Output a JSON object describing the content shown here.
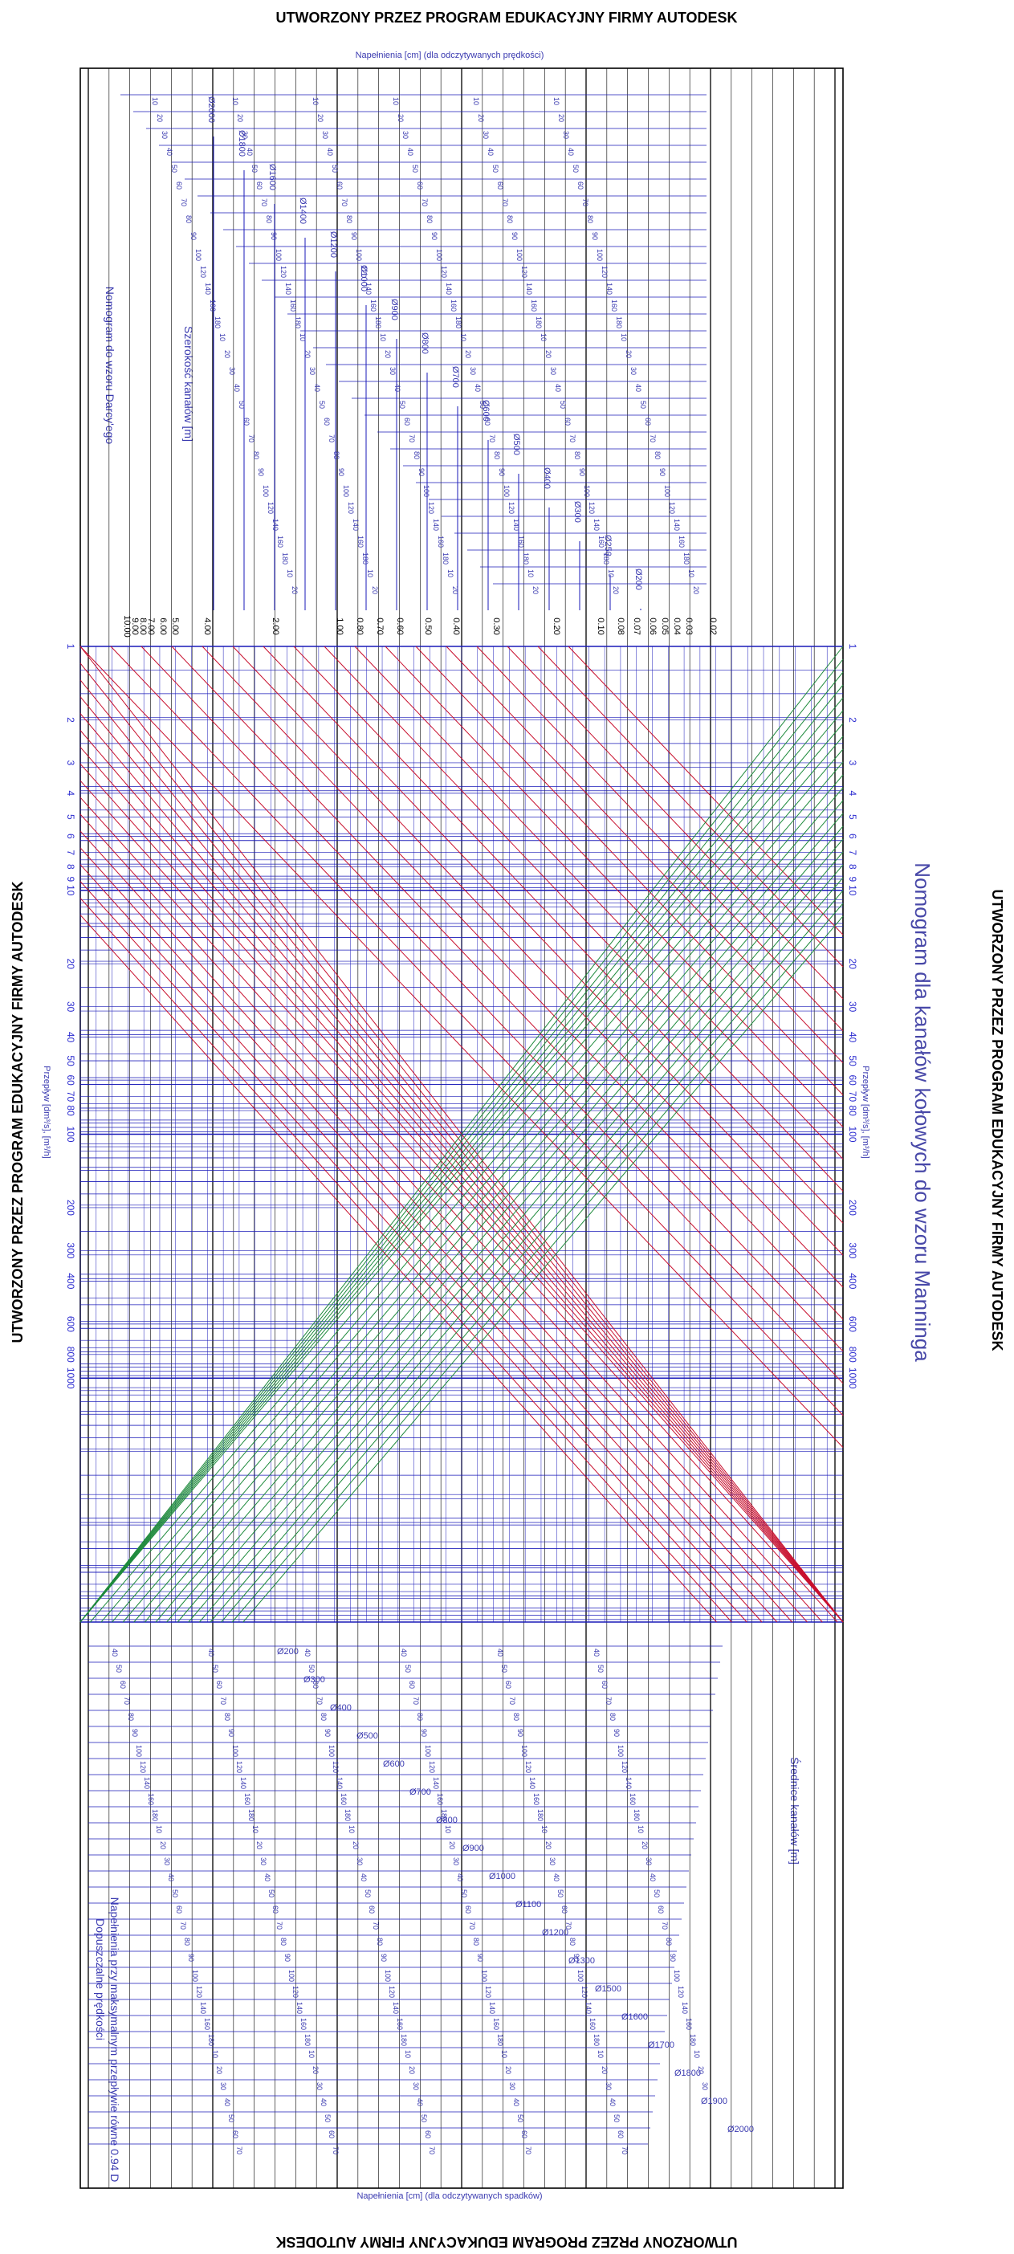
{
  "watermark": "UTWORZONY PRZEZ PROGRAM EDUKACYJNY FIRMY AUTODESK",
  "title": "Nomogram dla kanałów kołowych do wzoru Manninga",
  "top_caption": "Napełnienia [cm] (dla odczytywanych prędkości)",
  "bottom_caption": "Napełnienia [cm] (dla odczytywanych spadków)",
  "upper_left_label": "Nomogram do wzoru Darcy'ego",
  "upper_mid_label": "Szerokość kanałów [m]",
  "lower_mid_label": "Średnice kanałów [m]",
  "lower_left_label_1": "Dopuszczalne prędkości",
  "lower_left_label_2": "Napełnienia przy maksymalnym przepływie równe 0.94 D",
  "axis_label_left": "Przepływ [dm³/s], [m³/h]",
  "axis_label_right": "Przepływ [dm³/s], [m³/h]",
  "colors": {
    "frame": "#000000",
    "grid_blue": "#1a1ab8",
    "red": "#c8102e",
    "green": "#1e8a3c",
    "text_blue": "#3a3ab0"
  },
  "chart_data": {
    "type": "nomogram",
    "flow_ticks": [
      "1",
      "2",
      "3",
      "4",
      "5",
      "6",
      "7",
      "8",
      "9",
      "10",
      "20",
      "30",
      "40",
      "50",
      "60",
      "70",
      "80",
      "100",
      "200",
      "300",
      "400",
      "600",
      "800",
      "1000"
    ],
    "flow_values": [
      1,
      2,
      3,
      4,
      5,
      6,
      7,
      8,
      9,
      10,
      20,
      30,
      40,
      50,
      60,
      70,
      80,
      100,
      200,
      300,
      400,
      600,
      800,
      1000
    ],
    "scale_ticks": [
      "10.00",
      "9.00",
      "8.00",
      "7.00",
      "6.00",
      "5.00",
      "4.00",
      "2.00",
      "1.00",
      "0.80",
      "0.70",
      "0.60",
      "0.50",
      "0.40",
      "0.30",
      "0.20",
      "0.10",
      "0.08",
      "0.07",
      "0.06",
      "0.05",
      "0.04",
      "0.03",
      "0.02"
    ],
    "diameters_upper": [
      "Ø2000",
      "Ø1800",
      "Ø1600",
      "Ø1400",
      "Ø1200",
      "Ø1000",
      "Ø900",
      "Ø800",
      "Ø700",
      "Ø600",
      "Ø500",
      "Ø400",
      "Ø300",
      "Ø250",
      "Ø200"
    ],
    "diameters_lower": [
      "Ø200",
      "Ø300",
      "Ø400",
      "Ø500",
      "Ø600",
      "Ø700",
      "Ø800",
      "Ø900",
      "Ø1000",
      "Ø1100",
      "Ø1200",
      "Ø1300",
      "Ø1500",
      "Ø1600",
      "Ø1700",
      "Ø1800",
      "Ø1900",
      "Ø2000"
    ],
    "fill_labels": [
      "10",
      "20",
      "30",
      "40",
      "50",
      "60",
      "70",
      "80",
      "90",
      "100",
      "120",
      "140",
      "160",
      "180"
    ],
    "series": [
      {
        "color_role": "red",
        "count": 17
      },
      {
        "color_role": "green",
        "count": 22
      }
    ],
    "grid": true
  }
}
